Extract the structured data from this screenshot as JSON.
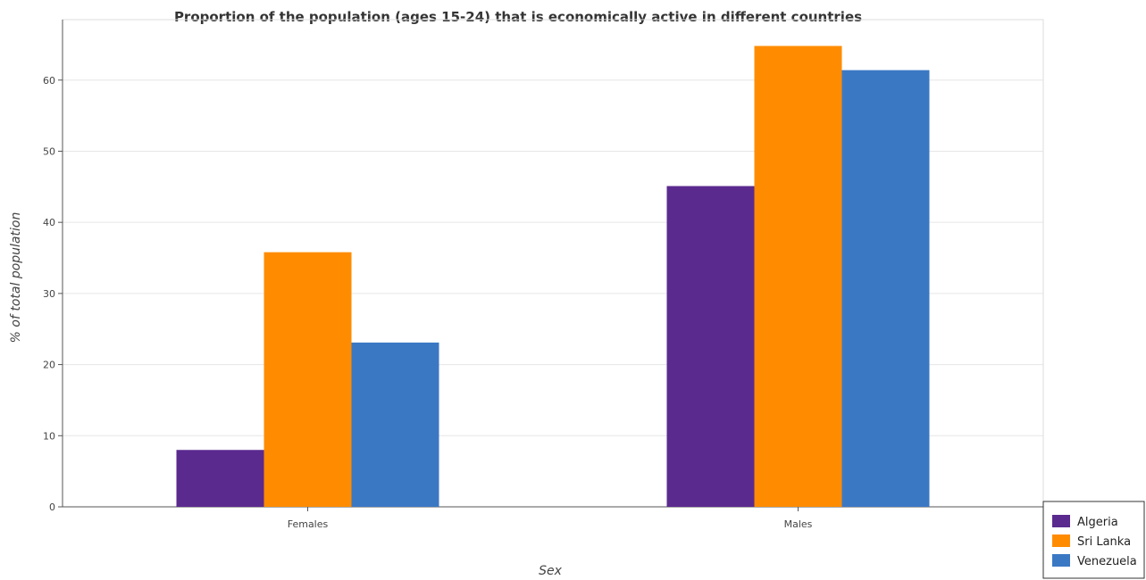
{
  "chart_data": {
    "type": "bar",
    "title": "Proportion of the population (ages 15-24) that is economically active in different countries",
    "xlabel": "Sex",
    "ylabel": "% of total population",
    "categories": [
      "Females",
      "Males"
    ],
    "series": [
      {
        "name": "Algeria",
        "color": "#5b2a8f",
        "values": [
          8.0,
          45.1
        ]
      },
      {
        "name": "Sri Lanka",
        "color": "#ff8c00",
        "values": [
          35.8,
          64.8
        ]
      },
      {
        "name": "Venezuela",
        "color": "#3b78c4",
        "values": [
          23.1,
          61.4
        ]
      }
    ],
    "ylim": [
      0,
      68.5
    ],
    "yticks": [
      0,
      10,
      20,
      30,
      40,
      50,
      60
    ],
    "grid": true,
    "legend_position": "bottom-right"
  }
}
